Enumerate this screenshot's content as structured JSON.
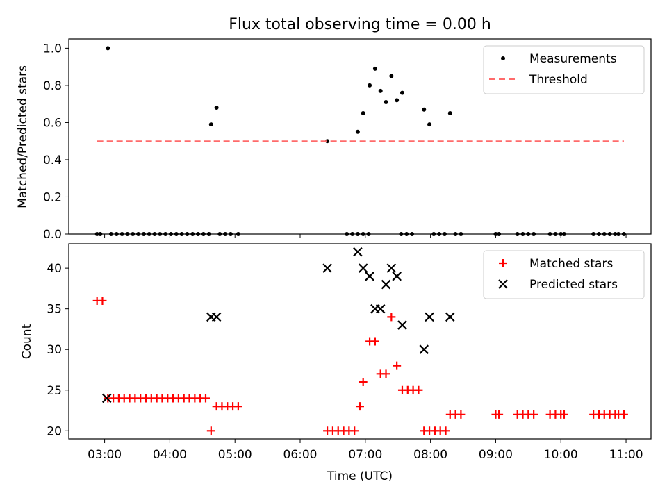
{
  "chart_data": [
    {
      "type": "scatter",
      "title": "Flux total observing time = 0.00 h",
      "xlabel": "",
      "ylabel": "Matched/Predicted stars",
      "ylim": [
        0,
        1.05
      ],
      "y_ticks": [
        "0.0",
        "0.2",
        "0.4",
        "0.6",
        "0.8",
        "1.0"
      ],
      "legend_position": "top-right",
      "grid": false,
      "series": [
        {
          "name": "Measurements",
          "marker": "dot",
          "color": "#000000",
          "x": [
            "02:53",
            "02:56",
            "03:06",
            "03:11",
            "03:16",
            "03:21",
            "03:26",
            "03:31",
            "03:36",
            "03:41",
            "03:46",
            "03:51",
            "03:56",
            "04:01",
            "04:06",
            "04:11",
            "04:16",
            "04:21",
            "04:26",
            "04:31",
            "04:36",
            "04:46",
            "04:51",
            "04:56",
            "05:03",
            "06:43",
            "06:48",
            "06:53",
            "06:58",
            "07:03",
            "07:33",
            "07:38",
            "07:43",
            "08:03",
            "08:08",
            "08:13",
            "08:23",
            "08:28",
            "09:00",
            "09:03",
            "09:20",
            "09:25",
            "09:30",
            "09:35",
            "09:50",
            "09:55",
            "10:00",
            "10:03",
            "10:30",
            "10:35",
            "10:40",
            "10:45",
            "10:50",
            "10:53",
            "10:58",
            "03:03",
            "04:38",
            "04:43",
            "06:25",
            "06:53",
            "06:58",
            "07:04",
            "07:09",
            "07:14",
            "07:19",
            "07:24",
            "07:29",
            "07:34",
            "07:54",
            "07:59",
            "08:18"
          ],
          "y": [
            0,
            0,
            0,
            0,
            0,
            0,
            0,
            0,
            0,
            0,
            0,
            0,
            0,
            0,
            0,
            0,
            0,
            0,
            0,
            0,
            0,
            0,
            0,
            0,
            0,
            0,
            0,
            0,
            0,
            0,
            0,
            0,
            0,
            0,
            0,
            0,
            0,
            0,
            0,
            0,
            0,
            0,
            0,
            0,
            0,
            0,
            0,
            0,
            0,
            0,
            0,
            0,
            0,
            0,
            0,
            1.0,
            0.59,
            0.68,
            0.5,
            0.55,
            0.65,
            0.8,
            0.89,
            0.77,
            0.71,
            0.85,
            0.72,
            0.76,
            0.67,
            0.59,
            0.65
          ]
        },
        {
          "name": "Threshold",
          "marker": "dashed-line",
          "color": "#ff6b6b",
          "x": [
            "02:53",
            "10:58"
          ],
          "y": [
            0.5,
            0.5
          ]
        }
      ]
    },
    {
      "type": "scatter",
      "title": "",
      "xlabel": "Time (UTC)",
      "ylabel": "Count",
      "ylim": [
        19,
        43
      ],
      "y_ticks": [
        "20",
        "25",
        "30",
        "35",
        "40"
      ],
      "x_ticks": [
        "03:00",
        "04:00",
        "05:00",
        "06:00",
        "07:00",
        "08:00",
        "09:00",
        "10:00",
        "11:00"
      ],
      "xlim": [
        "02:27",
        "11:23"
      ],
      "legend_position": "top-right",
      "grid": false,
      "series": [
        {
          "name": "Matched stars",
          "marker": "plus",
          "color": "#ff0000",
          "x": [
            "02:53",
            "02:58",
            "03:03",
            "03:08",
            "03:13",
            "03:18",
            "03:23",
            "03:28",
            "03:33",
            "03:38",
            "03:43",
            "03:48",
            "03:53",
            "03:58",
            "04:03",
            "04:08",
            "04:13",
            "04:18",
            "04:23",
            "04:28",
            "04:33",
            "04:38",
            "04:43",
            "04:48",
            "04:53",
            "04:58",
            "05:03",
            "06:25",
            "06:30",
            "06:35",
            "06:40",
            "06:45",
            "06:50",
            "06:55",
            "06:58",
            "07:04",
            "07:09",
            "07:14",
            "07:19",
            "07:24",
            "07:29",
            "07:34",
            "07:39",
            "07:44",
            "07:49",
            "07:54",
            "07:59",
            "08:04",
            "08:09",
            "08:14",
            "08:18",
            "08:23",
            "08:28",
            "09:00",
            "09:03",
            "09:20",
            "09:25",
            "09:30",
            "09:35",
            "09:50",
            "09:55",
            "10:00",
            "10:03",
            "10:30",
            "10:35",
            "10:40",
            "10:45",
            "10:50",
            "10:53",
            "10:58"
          ],
          "y": [
            36,
            36,
            24,
            24,
            24,
            24,
            24,
            24,
            24,
            24,
            24,
            24,
            24,
            24,
            24,
            24,
            24,
            24,
            24,
            24,
            24,
            20,
            23,
            23,
            23,
            23,
            23,
            20,
            20,
            20,
            20,
            20,
            20,
            23,
            26,
            31,
            31,
            27,
            27,
            34,
            28,
            25,
            25,
            25,
            25,
            20,
            20,
            20,
            20,
            20,
            22,
            22,
            22,
            22,
            22,
            22,
            22,
            22,
            22,
            22,
            22,
            22,
            22,
            22,
            22,
            22,
            22,
            22,
            22,
            22
          ]
        },
        {
          "name": "Predicted stars",
          "marker": "x",
          "color": "#000000",
          "x": [
            "03:02",
            "04:38",
            "04:43",
            "06:25",
            "06:53",
            "06:58",
            "07:04",
            "07:09",
            "07:14",
            "07:19",
            "07:24",
            "07:29",
            "07:34",
            "07:54",
            "07:59",
            "08:18"
          ],
          "y": [
            24,
            34,
            34,
            40,
            42,
            40,
            39,
            35,
            35,
            38,
            40,
            39,
            33,
            30,
            34,
            34
          ]
        }
      ]
    }
  ]
}
